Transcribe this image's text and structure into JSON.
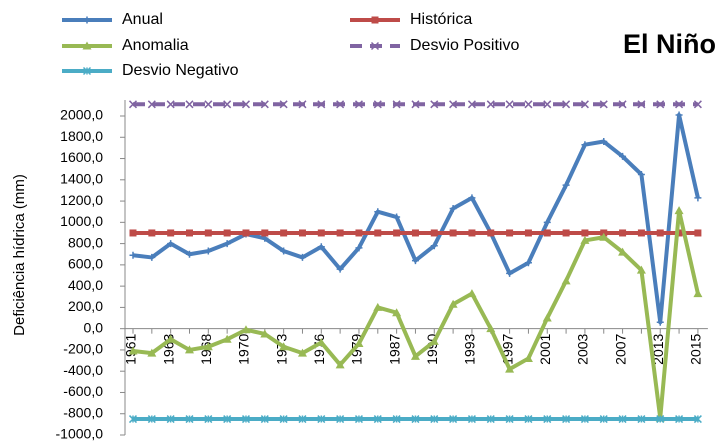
{
  "chart_data": {
    "type": "line",
    "title": "El Niño",
    "ylabel": "Deficiência hídrica (mm)",
    "categories": [
      "1961",
      null,
      "1963",
      null,
      "1968",
      null,
      "1970",
      null,
      "1973",
      null,
      "1976",
      null,
      "1979",
      null,
      "1987",
      null,
      "1990",
      null,
      "1993",
      null,
      "1997",
      null,
      "2001",
      null,
      "2003",
      null,
      "2007",
      null,
      "2013",
      null,
      "2015"
    ],
    "series": [
      {
        "name": "Anual",
        "color": "#4a7ebb",
        "marker": "plus",
        "values": [
          690,
          670,
          800,
          700,
          730,
          800,
          890,
          850,
          730,
          670,
          770,
          560,
          760,
          1100,
          1050,
          640,
          780,
          1130,
          1230,
          900,
          520,
          620,
          1000,
          1350,
          1730,
          1760,
          1620,
          1450,
          60,
          2010,
          1230
        ]
      },
      {
        "name": "Histórica",
        "color": "#be4b48",
        "marker": "square",
        "values": [
          900,
          900,
          900,
          900,
          900,
          900,
          900,
          900,
          900,
          900,
          900,
          900,
          900,
          900,
          900,
          900,
          900,
          900,
          900,
          900,
          900,
          900,
          900,
          900,
          900,
          900,
          900,
          900,
          900,
          900,
          900
        ]
      },
      {
        "name": "Anomalia",
        "color": "#98b954",
        "marker": "triangle",
        "values": [
          -210,
          -230,
          -100,
          -200,
          -170,
          -100,
          -10,
          -50,
          -170,
          -230,
          -130,
          -340,
          -140,
          200,
          150,
          -260,
          -120,
          230,
          330,
          0,
          -380,
          -280,
          100,
          450,
          830,
          860,
          720,
          550,
          -840,
          1110,
          330
        ]
      },
      {
        "name": "Desvio Positivo",
        "color": "#8064a2",
        "marker": "x",
        "dash": true,
        "values": [
          2110,
          2110,
          2110,
          2110,
          2110,
          2110,
          2110,
          2110,
          2110,
          2110,
          2110,
          2110,
          2110,
          2110,
          2110,
          2110,
          2110,
          2110,
          2110,
          2110,
          2110,
          2110,
          2110,
          2110,
          2110,
          2110,
          2110,
          2110,
          2110,
          2110,
          2110
        ]
      },
      {
        "name": "Desvio Negativo",
        "color": "#4bacc6",
        "marker": "star",
        "values": [
          -850,
          -850,
          -850,
          -850,
          -850,
          -850,
          -850,
          -850,
          -850,
          -850,
          -850,
          -850,
          -850,
          -850,
          -850,
          -850,
          -850,
          -850,
          -850,
          -850,
          -850,
          -850,
          -850,
          -850,
          -850,
          -850,
          -850,
          -850,
          -850,
          -850,
          -850
        ]
      }
    ],
    "ylim": [
      -1000,
      2150
    ],
    "yticks": [
      {
        "value": -1000,
        "label": "-1000,0"
      },
      {
        "value": -800,
        "label": "-800,0"
      },
      {
        "value": -600,
        "label": "-600,0"
      },
      {
        "value": -400,
        "label": "-400,0"
      },
      {
        "value": -200,
        "label": "-200,0"
      },
      {
        "value": 0,
        "label": "0,0"
      },
      {
        "value": 200,
        "label": "200,0"
      },
      {
        "value": 400,
        "label": "400,0"
      },
      {
        "value": 600,
        "label": "600,0"
      },
      {
        "value": 800,
        "label": "800,0"
      },
      {
        "value": 1000,
        "label": "1000,0"
      },
      {
        "value": 1200,
        "label": "1200,0"
      },
      {
        "value": 1400,
        "label": "1400,0"
      },
      {
        "value": 1600,
        "label": "1600,0"
      },
      {
        "value": 1800,
        "label": "1800,0"
      },
      {
        "value": 2000,
        "label": "2000,0"
      }
    ],
    "grid": false
  }
}
